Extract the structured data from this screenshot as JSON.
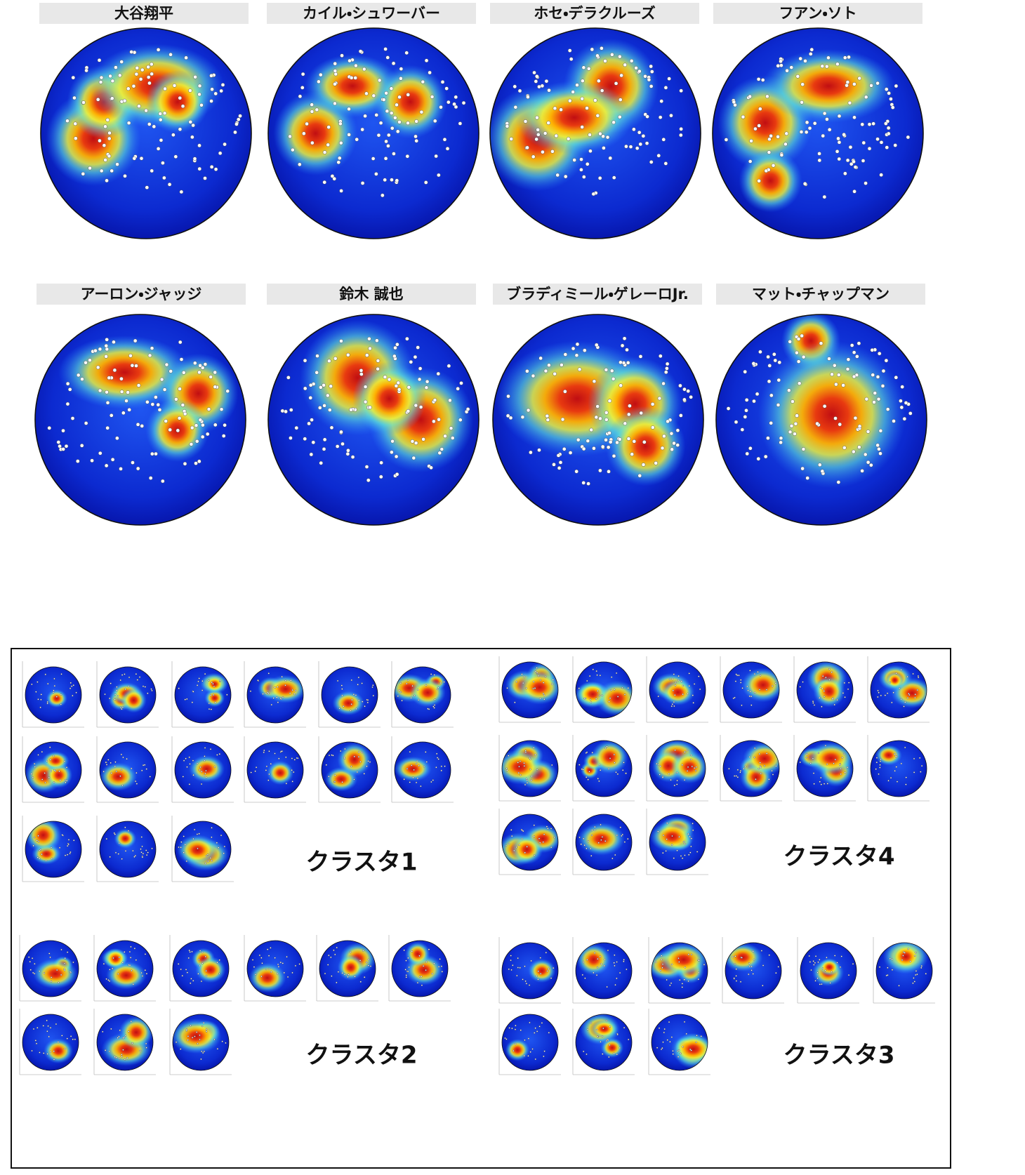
{
  "players": [
    "大谷翔平",
    "カイル・シュワーバー",
    "ホセ・デラクルーズ",
    "フアン・ソト",
    "アーロン・ジャッジ",
    "鈴木 誠也",
    "ブラディミール・ゲレーロJr.",
    "マット・チャップマン"
  ],
  "clusters": [
    "クラスタ1",
    "クラスタ4",
    "クラスタ2",
    "クラスタ3"
  ]
}
